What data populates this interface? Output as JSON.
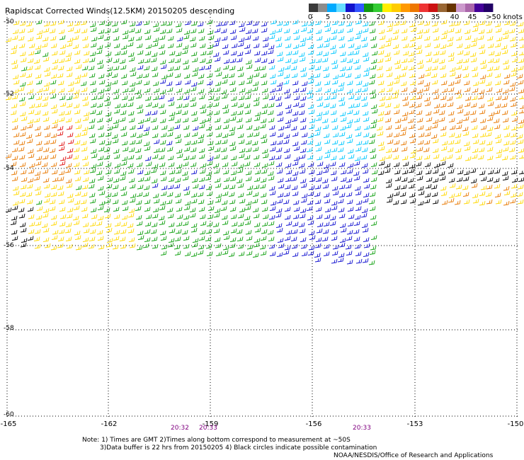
{
  "title": "Rapidscat Corrected Winds(12.5KM) 20150205 descending",
  "colorbar": {
    "labels": [
      "0",
      "5",
      "10",
      "15",
      "20",
      "25",
      "30",
      "35",
      "40",
      "45",
      ">50 knots"
    ],
    "colors": [
      "#3a3a3a",
      "#8c8c8c",
      "#00aaff",
      "#66ddff",
      "#1212cc",
      "#3355ff",
      "#119911",
      "#33cc33",
      "#ffee00",
      "#ffcc00",
      "#ff9900",
      "#ee7700",
      "#ee3333",
      "#cc1111",
      "#996633",
      "#663300",
      "#cc99cc",
      "#aa66aa",
      "#440099",
      "#220066"
    ]
  },
  "lat_labels": [
    "-50",
    "-52",
    "-54",
    "-56",
    "-58",
    "-60"
  ],
  "lon_labels": [
    "-165",
    "-162",
    "-159",
    "-156",
    "-153",
    "-150"
  ],
  "time_labels": [
    "20:32",
    "20:33",
    "20:33"
  ],
  "notes": {
    "line1": "Note: 1) Times are GMT 2)Times along bottom correspond to measurement at ~50S",
    "line2": "3)Data buffer is 22 hrs from 20150205 4) Black circles indicate possible contamination",
    "credit": "NOAA/NESDIS/Office of Research and Applications"
  },
  "wind_colors": {
    "calm": "#000000",
    "light": "#00c8ff",
    "moderate": "#1010d0",
    "fresh": "#10a010",
    "strong": "#ffd800",
    "gale": "#e87800",
    "storm": "#e01010"
  }
}
